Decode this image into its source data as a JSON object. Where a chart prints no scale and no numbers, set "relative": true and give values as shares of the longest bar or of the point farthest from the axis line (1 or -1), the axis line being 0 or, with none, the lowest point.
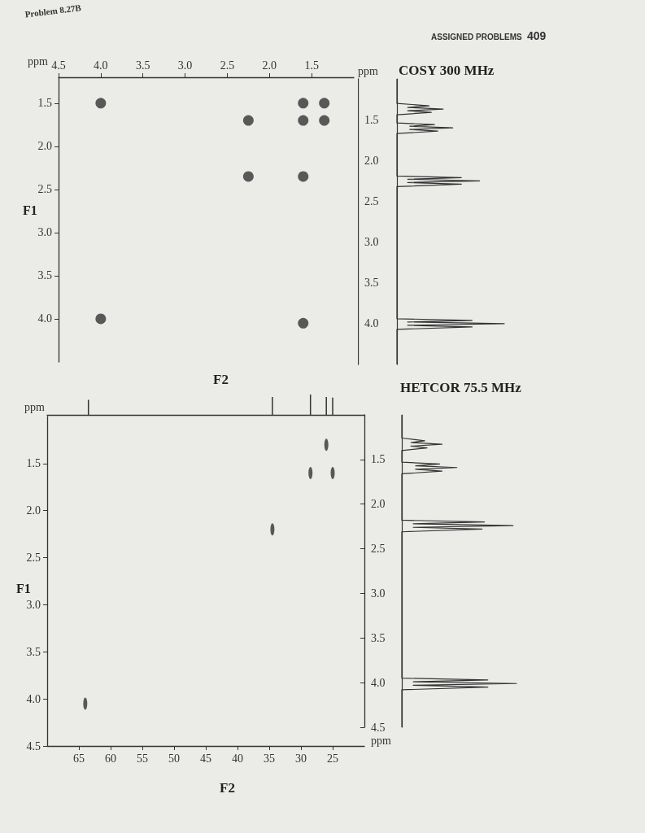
{
  "chart_data": [
    {
      "type": "scatter",
      "xlabel": "F2",
      "ylabel": "F1",
      "annotations": [
        "Problem 8.27B",
        "ppm"
      ],
      "x": [
        4.0,
        1.6,
        1.35,
        2.25,
        1.6,
        1.35,
        2.25,
        1.6,
        4.0,
        1.6
      ],
      "values": [
        1.5,
        1.5,
        1.5,
        1.7,
        1.7,
        1.7,
        2.35,
        2.35,
        4.0,
        4.05
      ],
      "color": "#333333",
      "marker": "circle",
      "grid": false,
      "xlim": [
        4.5,
        1.0
      ],
      "xticks": [
        {
          "value": 4.5,
          "label": "4.5"
        },
        {
          "value": 4.0,
          "label": "4.0"
        },
        {
          "value": 3.5,
          "label": "3.5"
        },
        {
          "value": 3.0,
          "label": "3.0"
        },
        {
          "value": 2.5,
          "label": "2.5"
        },
        {
          "value": 2.0,
          "label": "2.0"
        },
        {
          "value": 1.5,
          "label": "1.5"
        }
      ],
      "ylim": [
        4.5,
        1.2
      ],
      "yticks": [
        {
          "value": 1.5,
          "label": "1.5"
        },
        {
          "value": 2.0,
          "label": "2.0"
        },
        {
          "value": 2.5,
          "label": "2.5"
        },
        {
          "value": 3.0,
          "label": "3.0"
        },
        {
          "value": 3.5,
          "label": "3.5"
        },
        {
          "value": 4.0,
          "label": "4.0"
        }
      ]
    },
    {
      "type": "line",
      "title": "COSY 300 MHz",
      "annotations": [
        "ASSIGNED PROBLEMS",
        "409",
        "ppm"
      ],
      "orientation": "horizontal",
      "relative": true,
      "color": "#333333",
      "x": [
        1.0,
        1.3,
        1.33,
        1.35,
        1.37,
        1.39,
        1.41,
        1.44,
        1.54,
        1.56,
        1.58,
        1.6,
        1.62,
        1.64,
        1.67,
        2.19,
        2.21,
        2.23,
        2.25,
        2.27,
        2.29,
        2.32,
        3.94,
        3.96,
        3.98,
        4.0,
        4.02,
        4.04,
        4.07,
        4.5
      ],
      "values": [
        0,
        0,
        0.3,
        0.1,
        0.43,
        0.1,
        0.32,
        0,
        0,
        0.35,
        0.12,
        0.52,
        0.12,
        0.38,
        0,
        0,
        0.6,
        0.1,
        0.77,
        0.1,
        0.6,
        0,
        0,
        0.7,
        0.1,
        1.0,
        0.1,
        0.7,
        0,
        0
      ],
      "ylim": [
        4.5,
        1.0
      ],
      "yticks": [
        {
          "value": 1.5,
          "label": "1.5"
        },
        {
          "value": 2.0,
          "label": "2.0"
        },
        {
          "value": 2.5,
          "label": "2.5"
        },
        {
          "value": 3.0,
          "label": "3.0"
        },
        {
          "value": 3.5,
          "label": "3.5"
        },
        {
          "value": 4.0,
          "label": "4.0"
        }
      ]
    },
    {
      "type": "bar",
      "relative": true,
      "color": "#333333",
      "x": [
        63.5,
        34.5,
        28.5,
        26,
        25
      ],
      "values": [
        0.74,
        0.88,
        1.0,
        0.88,
        0.85
      ],
      "xlim": [
        70,
        20
      ]
    },
    {
      "type": "scatter",
      "xlabel": "F2",
      "ylabel": "F1",
      "annotations": [
        "ppm",
        "ppm"
      ],
      "x": [
        64,
        34.5,
        28.5,
        25,
        26
      ],
      "values": [
        4.05,
        2.2,
        1.6,
        1.6,
        1.3
      ],
      "color": "#333333",
      "marker": "circle",
      "grid": false,
      "xlim": [
        70,
        20
      ],
      "xticks": [
        65,
        60,
        55,
        50,
        45,
        40,
        35,
        30,
        25
      ],
      "ylim": [
        4.5,
        1.0
      ],
      "yticks": [
        {
          "value": 1.5,
          "label": "1.5"
        },
        {
          "value": 2.0,
          "label": "2.0"
        },
        {
          "value": 2.5,
          "label": "2.5"
        },
        {
          "value": 3.0,
          "label": "3.0"
        },
        {
          "value": 3.5,
          "label": "3.5"
        },
        {
          "value": 4.0,
          "label": "4.0"
        },
        {
          "value": 4.5,
          "label": "4.5"
        }
      ]
    },
    {
      "type": "line",
      "title": "HETCOR 75.5 MHz",
      "orientation": "horizontal",
      "relative": true,
      "color": "#333333",
      "x": [
        1.0,
        1.26,
        1.29,
        1.31,
        1.33,
        1.35,
        1.37,
        1.4,
        1.53,
        1.55,
        1.57,
        1.59,
        1.61,
        1.63,
        1.66,
        2.18,
        2.2,
        2.22,
        2.24,
        2.26,
        2.28,
        2.31,
        3.95,
        3.97,
        3.99,
        4.01,
        4.03,
        4.05,
        4.08,
        4.5
      ],
      "values": [
        0,
        0,
        0.2,
        0.08,
        0.35,
        0.08,
        0.22,
        0,
        0,
        0.33,
        0.12,
        0.48,
        0.12,
        0.35,
        0,
        0,
        0.72,
        0.1,
        0.97,
        0.1,
        0.7,
        0,
        0,
        0.75,
        0.1,
        1.0,
        0.1,
        0.75,
        0,
        0
      ],
      "ylim": [
        4.5,
        1.0
      ],
      "yticks": [
        {
          "value": 1.5,
          "label": "1.5"
        },
        {
          "value": 2.0,
          "label": "2.0"
        },
        {
          "value": 2.5,
          "label": "2.5"
        },
        {
          "value": 3.0,
          "label": "3.0"
        },
        {
          "value": 3.5,
          "label": "3.5"
        },
        {
          "value": 4.0,
          "label": "4.0"
        },
        {
          "value": 4.5,
          "label": "4.5"
        }
      ]
    }
  ]
}
